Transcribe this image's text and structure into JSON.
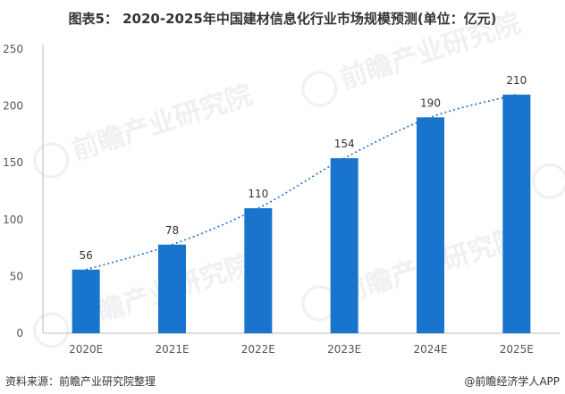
{
  "title": "图表5： 2020-2025年中国建材信息化行业市场规模预测(单位：亿元)",
  "source": "资料来源：前瞻产业研究院整理",
  "credit": "@前瞻经济学人APP",
  "watermark": "前瞻产业研究院",
  "colors": {
    "bar": "#1874CD",
    "trend": "#1E6FC4",
    "axis": "#555555",
    "label": "#333333"
  },
  "chart_data": {
    "type": "bar",
    "categories": [
      "2020E",
      "2021E",
      "2022E",
      "2023E",
      "2024E",
      "2025E"
    ],
    "values": [
      56,
      78,
      110,
      154,
      190,
      210
    ],
    "data_labels": [
      "56",
      "78",
      "110",
      "154",
      "190",
      "210"
    ],
    "y_ticks": [
      0,
      50,
      100,
      150,
      200,
      250
    ],
    "ylim": [
      0,
      250
    ],
    "trendline": "dotted",
    "grid": false,
    "legend": "none"
  }
}
